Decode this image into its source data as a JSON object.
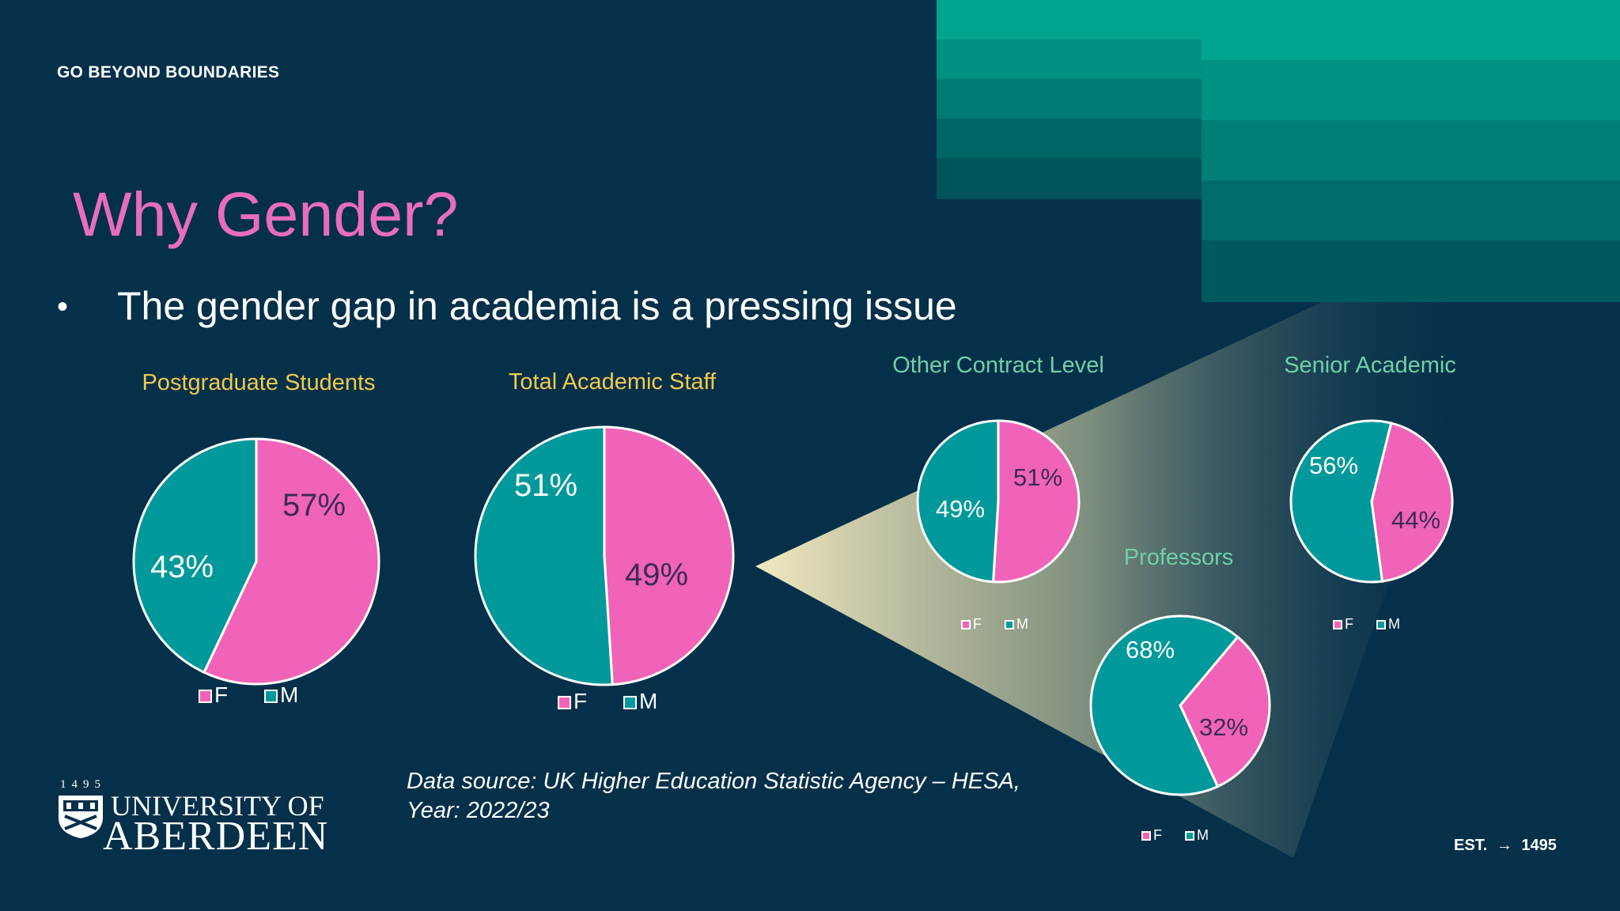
{
  "slide": {
    "tagline": "GO BEYOND BOUNDARIES",
    "title": "Why Gender?",
    "bullet": "The gender gap in academia is a pressing issue",
    "source_line1": "Data source: UK Higher Education Statistic Agency – HESA,",
    "source_line2": "Year: 2022/23",
    "logo_year": "1495",
    "logo_line1": "UNIVERSITY OF",
    "logo_line2": "ABERDEEN",
    "est_label": "EST.",
    "est_year": "1495"
  },
  "colors": {
    "background": "#05304a",
    "female": "#f063b8",
    "male": "#00999b",
    "title": "#e86cbf",
    "left_chart_titles": "#f2c94c",
    "right_chart_titles": "#6fd0a7",
    "accent_teal": "#00a58f"
  },
  "chart_data": [
    {
      "type": "pie",
      "title": "Postgraduate Students",
      "labels": [
        "F",
        "M"
      ],
      "values": [
        57,
        43
      ],
      "legend": "bottom"
    },
    {
      "type": "pie",
      "title": "Total Academic Staff",
      "labels": [
        "F",
        "M"
      ],
      "values": [
        49,
        51
      ],
      "legend": "bottom"
    },
    {
      "type": "pie",
      "title": "Other Contract Level",
      "labels": [
        "F",
        "M"
      ],
      "values": [
        51,
        49
      ],
      "legend": "bottom"
    },
    {
      "type": "pie",
      "title": "Professors",
      "labels": [
        "F",
        "M"
      ],
      "values": [
        32,
        68
      ],
      "legend": "bottom"
    },
    {
      "type": "pie",
      "title": "Senior Academic",
      "labels": [
        "F",
        "M"
      ],
      "values": [
        44,
        56
      ],
      "legend": "bottom"
    }
  ]
}
